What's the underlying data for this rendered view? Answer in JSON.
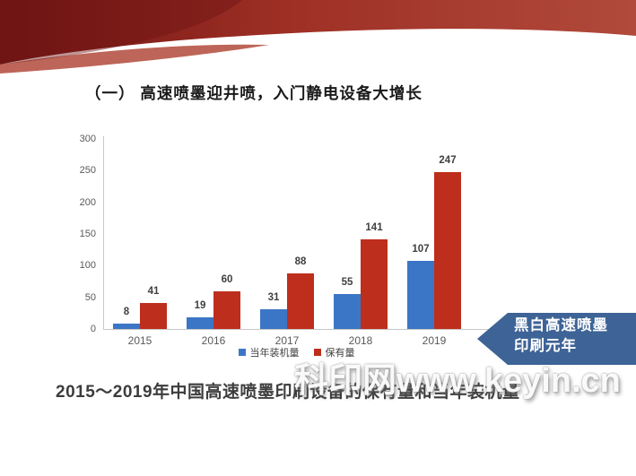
{
  "slide": {
    "title": "（一） 高速喷墨迎井喷，入门静电设备大增长",
    "caption": "2015～2019年中国高速喷墨印刷设备的保有量和当年装机量",
    "watermark": "科印网www.keyin.cn",
    "banner": {
      "line1": "黑白高速喷墨",
      "line2": "印刷元年"
    }
  },
  "colors": {
    "bar_blue": "#3b76c6",
    "bar_red": "#be2e1d",
    "banner_blue": "#3e6396",
    "swoosh_dark": "#6e1513",
    "swoosh_mid": "#9e2f25",
    "swoosh_light": "#b14a3b",
    "axis_text": "#595959",
    "value_text": "#3f3f3f"
  },
  "chart_data": {
    "type": "bar",
    "categories": [
      "2015",
      "2016",
      "2017",
      "2018",
      "2019"
    ],
    "series": [
      {
        "name": "当年装机量",
        "color": "#3b76c6",
        "values": [
          8,
          19,
          31,
          55,
          107
        ]
      },
      {
        "name": "保有量",
        "color": "#be2e1d",
        "values": [
          41,
          60,
          88,
          141,
          247
        ]
      }
    ],
    "title": "",
    "xlabel": "",
    "ylabel": "",
    "ylim": [
      0,
      300
    ],
    "yticks": [
      0,
      50,
      100,
      150,
      200,
      250,
      300
    ],
    "grid": false,
    "legend_position": "bottom"
  }
}
